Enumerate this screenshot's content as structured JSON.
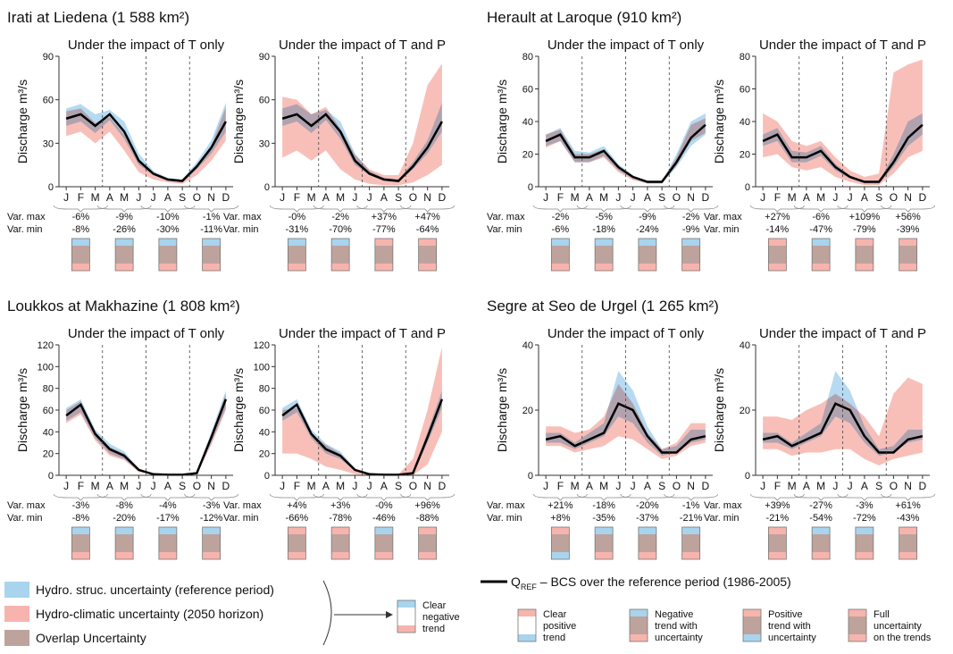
{
  "shared": {
    "months": [
      "J",
      "F",
      "M",
      "A",
      "M",
      "J",
      "J",
      "A",
      "S",
      "O",
      "N",
      "D"
    ],
    "y_label": "Discharge m³/s",
    "var_max_label": "Var. max",
    "var_min_label": "Var. min"
  },
  "chart_data": [
    {
      "type": "line",
      "title": "Irati at Liedena (1 588 km²)",
      "ref": [
        47,
        50,
        42,
        50,
        38,
        18,
        9,
        5,
        4,
        14,
        27,
        45
      ],
      "ref_lo": [
        42,
        45,
        37,
        46,
        33,
        15,
        8,
        4,
        3,
        12,
        23,
        38
      ],
      "ref_hi": [
        54,
        57,
        50,
        53,
        45,
        23,
        11,
        6,
        5,
        17,
        32,
        58
      ],
      "panels": [
        {
          "title": "Under the impact of T only",
          "ylim": [
            0,
            90
          ],
          "yticks": [
            0,
            30,
            60,
            90
          ],
          "fut_lo": [
            35,
            38,
            30,
            38,
            25,
            10,
            5,
            3,
            2,
            8,
            18,
            32
          ],
          "fut_hi": [
            52,
            54,
            44,
            48,
            36,
            18,
            9,
            5,
            4,
            13,
            28,
            55
          ],
          "var_max": [
            "-6%",
            "-9%",
            "-10%",
            "-1%"
          ],
          "var_min": [
            "-8%",
            "-26%",
            "-30%",
            "-11%"
          ]
        },
        {
          "title": "Under the impact of T and P",
          "ylim": [
            0,
            90
          ],
          "yticks": [
            0,
            30,
            60,
            90
          ],
          "fut_lo": [
            20,
            25,
            18,
            25,
            12,
            5,
            2,
            1,
            1,
            3,
            8,
            15
          ],
          "fut_hi": [
            62,
            60,
            50,
            55,
            40,
            22,
            12,
            8,
            8,
            30,
            70,
            85
          ],
          "var_max": [
            "-0%",
            "-2%",
            "+37%",
            "+47%"
          ],
          "var_min": [
            "-31%",
            "-70%",
            "-77%",
            "-64%"
          ]
        }
      ]
    },
    {
      "type": "line",
      "title": "Herault at Laroque (910 km²)",
      "ref": [
        28,
        32,
        18,
        18,
        22,
        12,
        6,
        3,
        3,
        15,
        30,
        38
      ],
      "ref_lo": [
        25,
        28,
        15,
        15,
        19,
        10,
        5,
        2,
        2,
        12,
        25,
        32
      ],
      "ref_hi": [
        32,
        36,
        22,
        21,
        25,
        14,
        7,
        3,
        3,
        20,
        40,
        45
      ],
      "panels": [
        {
          "title": "Under the impact of T only",
          "ylim": [
            0,
            80
          ],
          "yticks": [
            0,
            20,
            40,
            60,
            80
          ],
          "fut_lo": [
            24,
            28,
            15,
            15,
            18,
            9,
            4,
            2,
            2,
            13,
            28,
            33
          ],
          "fut_hi": [
            32,
            35,
            20,
            20,
            23,
            13,
            6,
            3,
            3,
            18,
            38,
            42
          ],
          "var_max": [
            "-2%",
            "-5%",
            "-9%",
            "-2%"
          ],
          "var_min": [
            "-6%",
            "-18%",
            "-24%",
            "-9%"
          ]
        },
        {
          "title": "Under the impact of T and P",
          "ylim": [
            0,
            80
          ],
          "yticks": [
            0,
            20,
            40,
            60,
            80
          ],
          "fut_lo": [
            18,
            20,
            12,
            10,
            12,
            6,
            3,
            1,
            1,
            8,
            18,
            22
          ],
          "fut_hi": [
            45,
            40,
            28,
            25,
            28,
            18,
            10,
            6,
            8,
            70,
            75,
            78
          ],
          "var_max": [
            "+27%",
            "-6%",
            "+109%",
            "+56%"
          ],
          "var_min": [
            "-14%",
            "-47%",
            "-79%",
            "-39%"
          ]
        }
      ]
    },
    {
      "type": "line",
      "title": "Loukkos at Makhazine (1 808 km²)",
      "ref": [
        55,
        65,
        38,
        24,
        18,
        5,
        1,
        0.5,
        0.5,
        2,
        35,
        70
      ],
      "ref_lo": [
        50,
        58,
        34,
        20,
        15,
        4,
        1,
        0,
        0,
        1,
        30,
        62
      ],
      "ref_hi": [
        62,
        70,
        42,
        29,
        22,
        6,
        1,
        1,
        1,
        3,
        40,
        78
      ],
      "panels": [
        {
          "title": "Under the impact of T only",
          "ylim": [
            0,
            120
          ],
          "yticks": [
            0,
            20,
            40,
            60,
            80,
            100,
            120
          ],
          "fut_lo": [
            48,
            56,
            32,
            18,
            14,
            3,
            1,
            0,
            0,
            1,
            28,
            60
          ],
          "fut_hi": [
            60,
            68,
            40,
            26,
            20,
            5,
            1,
            1,
            1,
            3,
            38,
            75
          ],
          "var_max": [
            "-3%",
            "-8%",
            "-4%",
            "-3%"
          ],
          "var_min": [
            "-8%",
            "-20%",
            "-17%",
            "-12%"
          ]
        },
        {
          "title": "Under the impact of T and P",
          "ylim": [
            0,
            120
          ],
          "yticks": [
            0,
            20,
            40,
            60,
            80,
            100,
            120
          ],
          "fut_lo": [
            20,
            20,
            15,
            8,
            5,
            1,
            0,
            0,
            0,
            0,
            10,
            40
          ],
          "fut_hi": [
            60,
            62,
            38,
            28,
            20,
            5,
            1,
            1,
            1,
            15,
            60,
            118
          ],
          "var_max": [
            "+4%",
            "+3%",
            "-0%",
            "+96%"
          ],
          "var_min": [
            "-66%",
            "-78%",
            "-46%",
            "-88%"
          ]
        }
      ]
    },
    {
      "type": "line",
      "title": "Segre at Seo de Urgel (1 265 km²)",
      "ref": [
        11,
        12,
        9,
        11,
        13,
        22,
        20,
        12,
        7,
        7,
        11,
        12
      ],
      "ref_lo": [
        10,
        10,
        8,
        10,
        12,
        18,
        16,
        10,
        6,
        7,
        10,
        11
      ],
      "ref_hi": [
        13,
        13,
        10,
        13,
        16,
        32,
        26,
        15,
        8,
        9,
        14,
        14
      ],
      "panels": [
        {
          "title": "Under the impact of T only",
          "ylim": [
            0,
            40
          ],
          "yticks": [
            0,
            20,
            40
          ],
          "fut_lo": [
            9,
            9,
            7,
            8,
            9,
            12,
            11,
            8,
            5,
            6,
            9,
            10
          ],
          "fut_hi": [
            15,
            15,
            13,
            14,
            18,
            28,
            22,
            13,
            8,
            10,
            16,
            16
          ],
          "var_max": [
            "+21%",
            "-18%",
            "-20%",
            "-1%"
          ],
          "var_min": [
            "+8%",
            "-35%",
            "-37%",
            "-21%"
          ]
        },
        {
          "title": "Under the impact of T and P",
          "ylim": [
            0,
            40
          ],
          "yticks": [
            0,
            20,
            40
          ],
          "fut_lo": [
            8,
            8,
            6,
            7,
            7,
            8,
            8,
            5,
            3,
            5,
            6,
            7
          ],
          "fut_hi": [
            18,
            18,
            17,
            20,
            22,
            25,
            22,
            18,
            12,
            25,
            30,
            28
          ],
          "var_max": [
            "+39%",
            "-27%",
            "-3%",
            "+61%"
          ],
          "var_min": [
            "-21%",
            "-54%",
            "-72%",
            "-43%"
          ]
        }
      ]
    }
  ],
  "legend": {
    "bands": [
      {
        "name": "Hydro. struc. uncertainty (reference period)",
        "color": "#a8d4ee"
      },
      {
        "name": "Hydro-climatic uncertainty (2050 horizon)",
        "color": "#f7b4ad"
      },
      {
        "name": "Overlap Uncertainty",
        "color": "#bea39d"
      }
    ],
    "line": {
      "q": "Q",
      "sub": "REF",
      "text": " – BCS over the reference period (1986-2005)"
    },
    "boxes": [
      {
        "kind": "clear-negative",
        "lines": [
          "Clear",
          "negative",
          "trend"
        ]
      },
      {
        "kind": "clear-positive",
        "lines": [
          "Clear",
          "positive",
          "trend"
        ]
      },
      {
        "kind": "negative-uncertain",
        "lines": [
          "Negative",
          "trend with",
          "uncertainty"
        ]
      },
      {
        "kind": "positive-uncertain",
        "lines": [
          "Positive",
          "trend with",
          "uncertainty"
        ]
      },
      {
        "kind": "full-uncertainty",
        "lines": [
          "Full",
          "uncertainty",
          "on the trends"
        ]
      }
    ]
  }
}
